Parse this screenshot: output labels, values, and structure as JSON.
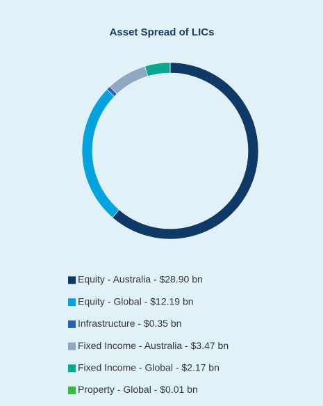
{
  "chart_data": {
    "type": "donut",
    "title": "Asset Spread of LICs",
    "categories": [
      "Equity - Australia - $28.90 bn",
      "Equity - Global - $12.19 bn",
      "Infrastructure - $0.35 bn",
      "Fixed Income - Australia - $3.47 bn",
      "Fixed Income - Global - $2.17 bn",
      "Property - Global - $0.01 bn"
    ],
    "values": [
      28.9,
      12.19,
      0.35,
      3.47,
      2.17,
      0.01
    ],
    "colors": [
      "#0f3a68",
      "#03a3e0",
      "#2b63b3",
      "#8ea8c3",
      "#06a88f",
      "#3bb54a"
    ]
  }
}
